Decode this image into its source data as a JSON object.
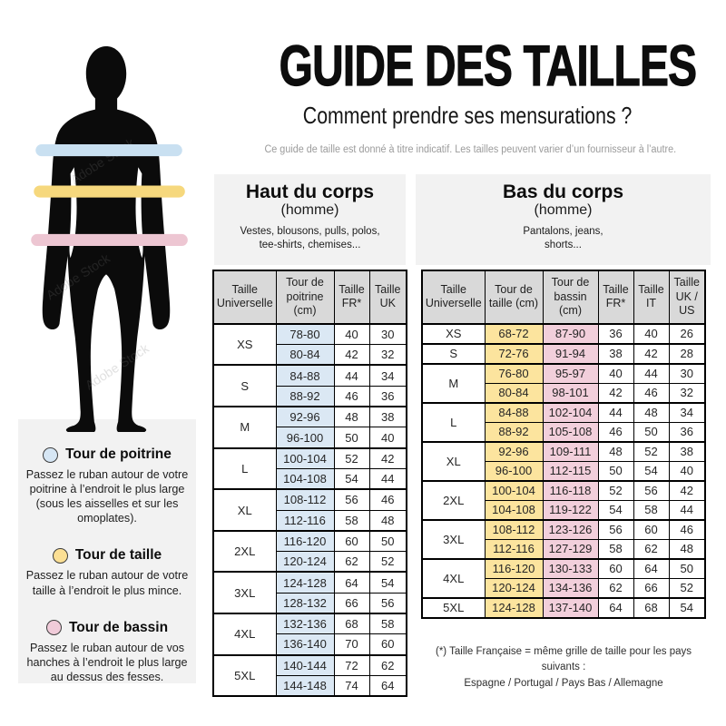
{
  "header": {
    "title": "GUIDE DES TAILLES",
    "subtitle": "Comment prendre ses mensurations ?",
    "disclaimer": "Ce guide de taille est donné à titre indicatif. Les tailles peuvent varier d’un fournisseur à l’autre."
  },
  "watermark": "Adobe Stock",
  "colors": {
    "chest_cell": "#dbe8f4",
    "waist_cell": "#fce49e",
    "hips_cell": "#f2cfdb",
    "chest_band": "#c9e0f1",
    "waist_band": "#f6d87d",
    "hips_band": "#edc6d2",
    "header_cell": "#d9d9d9",
    "panel_bg": "#f2f2f2",
    "muted": "#9b9b9b"
  },
  "legend": {
    "items": [
      {
        "name": "Tour de poitrine",
        "color": "#d6e6f4",
        "description": "Passez le ruban autour de votre poitrine à l’endroit le plus large (sous les aisselles et sur les omoplates)."
      },
      {
        "name": "Tour de taille",
        "color": "#fbdf94",
        "description": "Passez le ruban autour de votre taille à l’endroit le plus mince."
      },
      {
        "name": "Tour de bassin",
        "color": "#f0cbd9",
        "description": "Passez le ruban autour de vos hanches à l’endroit le plus large au dessus des fesses."
      }
    ]
  },
  "upper_table": {
    "title": "Haut du corps",
    "subtitle": "(homme)",
    "description": "Vestes, blousons, pulls, polos, tee-shirts, chemises...",
    "columns": [
      "Taille Universelle",
      "Tour de poitrine (cm)",
      "Taille FR*",
      "Taille UK"
    ],
    "groups": [
      {
        "size": "XS",
        "rows": [
          [
            "78-80",
            "40",
            "30"
          ],
          [
            "80-84",
            "42",
            "32"
          ]
        ]
      },
      {
        "size": "S",
        "rows": [
          [
            "84-88",
            "44",
            "34"
          ],
          [
            "88-92",
            "46",
            "36"
          ]
        ]
      },
      {
        "size": "M",
        "rows": [
          [
            "92-96",
            "48",
            "38"
          ],
          [
            "96-100",
            "50",
            "40"
          ]
        ]
      },
      {
        "size": "L",
        "rows": [
          [
            "100-104",
            "52",
            "42"
          ],
          [
            "104-108",
            "54",
            "44"
          ]
        ]
      },
      {
        "size": "XL",
        "rows": [
          [
            "108-112",
            "56",
            "46"
          ],
          [
            "112-116",
            "58",
            "48"
          ]
        ]
      },
      {
        "size": "2XL",
        "rows": [
          [
            "116-120",
            "60",
            "50"
          ],
          [
            "120-124",
            "62",
            "52"
          ]
        ]
      },
      {
        "size": "3XL",
        "rows": [
          [
            "124-128",
            "64",
            "54"
          ],
          [
            "128-132",
            "66",
            "56"
          ]
        ]
      },
      {
        "size": "4XL",
        "rows": [
          [
            "132-136",
            "68",
            "58"
          ],
          [
            "136-140",
            "70",
            "60"
          ]
        ]
      },
      {
        "size": "5XL",
        "rows": [
          [
            "140-144",
            "72",
            "62"
          ],
          [
            "144-148",
            "74",
            "64"
          ]
        ]
      }
    ]
  },
  "lower_table": {
    "title": "Bas du corps",
    "subtitle": "(homme)",
    "description": "Pantalons, jeans, shorts...",
    "columns": [
      "Taille Universelle",
      "Tour de taille (cm)",
      "Tour de bassin (cm)",
      "Taille FR*",
      "Taille IT",
      "Taille UK / US"
    ],
    "groups": [
      {
        "size": "XS",
        "rows": [
          [
            "68-72",
            "87-90",
            "36",
            "40",
            "26"
          ]
        ]
      },
      {
        "size": "S",
        "rows": [
          [
            "72-76",
            "91-94",
            "38",
            "42",
            "28"
          ]
        ]
      },
      {
        "size": "M",
        "rows": [
          [
            "76-80",
            "95-97",
            "40",
            "44",
            "30"
          ],
          [
            "80-84",
            "98-101",
            "42",
            "46",
            "32"
          ]
        ]
      },
      {
        "size": "L",
        "rows": [
          [
            "84-88",
            "102-104",
            "44",
            "48",
            "34"
          ],
          [
            "88-92",
            "105-108",
            "46",
            "50",
            "36"
          ]
        ]
      },
      {
        "size": "XL",
        "rows": [
          [
            "92-96",
            "109-111",
            "48",
            "52",
            "38"
          ],
          [
            "96-100",
            "112-115",
            "50",
            "54",
            "40"
          ]
        ]
      },
      {
        "size": "2XL",
        "rows": [
          [
            "100-104",
            "116-118",
            "52",
            "56",
            "42"
          ],
          [
            "104-108",
            "119-122",
            "54",
            "58",
            "44"
          ]
        ]
      },
      {
        "size": "3XL",
        "rows": [
          [
            "108-112",
            "123-126",
            "56",
            "60",
            "46"
          ],
          [
            "112-116",
            "127-129",
            "58",
            "62",
            "48"
          ]
        ]
      },
      {
        "size": "4XL",
        "rows": [
          [
            "116-120",
            "130-133",
            "60",
            "64",
            "50"
          ],
          [
            "120-124",
            "134-136",
            "62",
            "66",
            "52"
          ]
        ]
      },
      {
        "size": "5XL",
        "rows": [
          [
            "124-128",
            "137-140",
            "64",
            "68",
            "54"
          ]
        ]
      }
    ]
  },
  "footnote": {
    "line1": "(*) Taille Française = même grille de taille pour les pays suivants :",
    "line2": "Espagne / Portugal / Pays Bas / Allemagne"
  }
}
